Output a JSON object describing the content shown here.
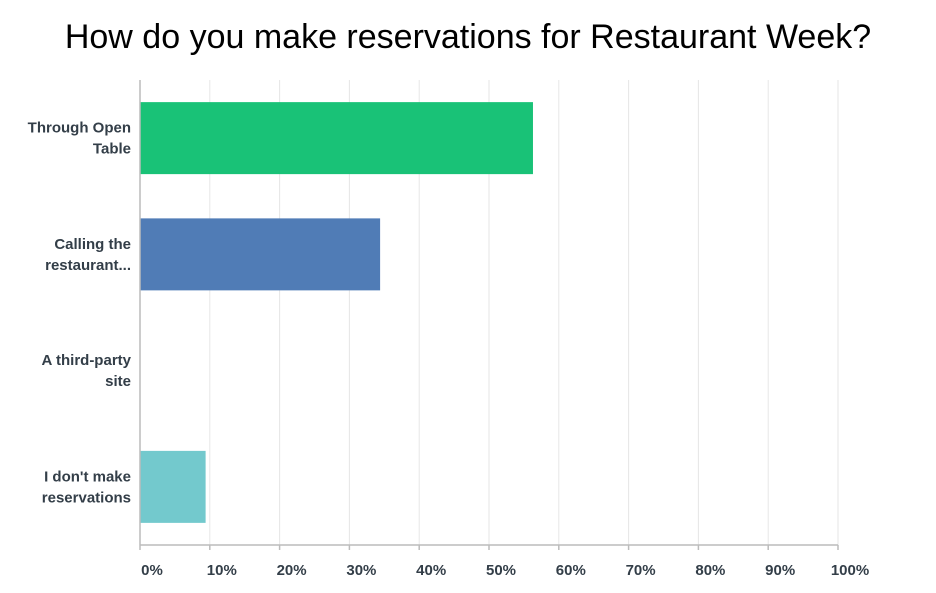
{
  "chart_data": {
    "type": "bar",
    "orientation": "horizontal",
    "title": "How do you make reservations for Restaurant Week?",
    "categories": [
      [
        "Through Open",
        "Table"
      ],
      [
        "Calling the",
        "restaurant..."
      ],
      [
        "A third-party",
        "site"
      ],
      [
        "I don't make",
        "reservations"
      ]
    ],
    "values": [
      56.3,
      34.4,
      0,
      9.4
    ],
    "colors": [
      "#19c277",
      "#507cb6",
      "#6bc8cd",
      "#73c9cd"
    ],
    "xlim": [
      0,
      100
    ],
    "ticks": [
      0,
      10,
      20,
      30,
      40,
      50,
      60,
      70,
      80,
      90,
      100
    ],
    "tick_labels": [
      "0%",
      "10%",
      "20%",
      "30%",
      "40%",
      "50%",
      "60%",
      "70%",
      "80%",
      "90%",
      "100%"
    ],
    "xlabel": "",
    "ylabel": "",
    "grid": true
  }
}
